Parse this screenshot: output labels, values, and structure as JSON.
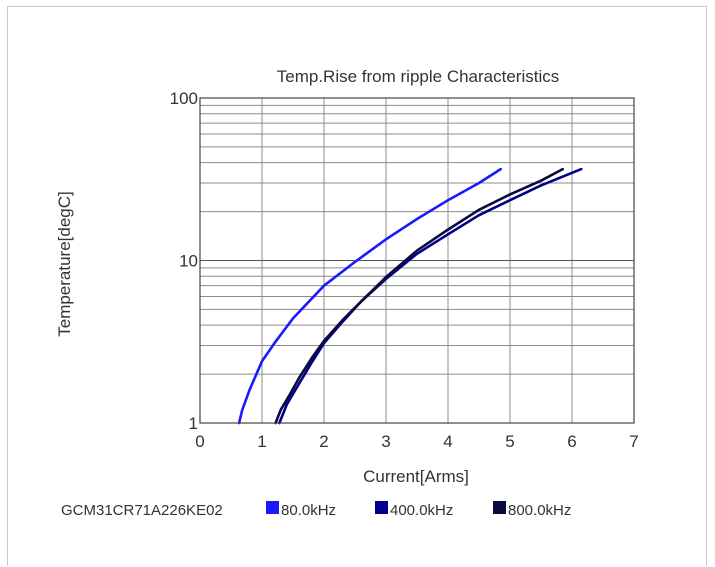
{
  "chart_data": {
    "type": "line",
    "title": "Temp.Rise from ripple Characteristics",
    "xlabel": "Current[Arms]",
    "ylabel": "Temperature[degC]",
    "xlim": [
      0,
      7
    ],
    "ylim": [
      1,
      100
    ],
    "yscale": "log",
    "grid": true,
    "x_ticks": [
      0,
      1,
      2,
      3,
      4,
      5,
      6,
      7
    ],
    "y_ticks": [
      1,
      10,
      100
    ],
    "x_tick_labels": [
      "0",
      "1",
      "2",
      "3",
      "4",
      "5",
      "6",
      "7"
    ],
    "y_tick_labels": [
      "1",
      "10",
      "100"
    ],
    "legend": {
      "placement": "bottom",
      "part_number": "GCM31CR71A226KE02"
    },
    "series": [
      {
        "name": "80.0kHz",
        "color": "#1a1aff",
        "points": [
          [
            0.63,
            1.0
          ],
          [
            0.68,
            1.2
          ],
          [
            0.8,
            1.6
          ],
          [
            1.0,
            2.4
          ],
          [
            1.2,
            3.1
          ],
          [
            1.5,
            4.4
          ],
          [
            2.0,
            7.0
          ],
          [
            2.5,
            9.8
          ],
          [
            3.0,
            13.5
          ],
          [
            3.5,
            18.0
          ],
          [
            4.0,
            23.5
          ],
          [
            4.5,
            30.0
          ],
          [
            4.85,
            36.5
          ]
        ]
      },
      {
        "name": "400.0kHz",
        "color": "#00008b",
        "points": [
          [
            1.28,
            1.0
          ],
          [
            1.4,
            1.3
          ],
          [
            1.6,
            1.75
          ],
          [
            1.8,
            2.35
          ],
          [
            2.0,
            3.1
          ],
          [
            2.3,
            4.2
          ],
          [
            2.6,
            5.6
          ],
          [
            3.0,
            7.7
          ],
          [
            3.5,
            11.0
          ],
          [
            4.0,
            14.5
          ],
          [
            4.5,
            19.0
          ],
          [
            5.0,
            23.5
          ],
          [
            5.5,
            29.0
          ],
          [
            6.15,
            36.5
          ]
        ]
      },
      {
        "name": "800.0kHz",
        "color": "#0a0a3c",
        "points": [
          [
            1.22,
            1.0
          ],
          [
            1.3,
            1.2
          ],
          [
            1.45,
            1.5
          ],
          [
            1.6,
            1.9
          ],
          [
            1.8,
            2.5
          ],
          [
            2.0,
            3.2
          ],
          [
            2.3,
            4.3
          ],
          [
            2.6,
            5.6
          ],
          [
            3.0,
            7.9
          ],
          [
            3.5,
            11.5
          ],
          [
            4.0,
            15.5
          ],
          [
            4.5,
            20.5
          ],
          [
            5.0,
            25.5
          ],
          [
            5.5,
            31.0
          ],
          [
            5.85,
            36.5
          ]
        ]
      }
    ]
  }
}
